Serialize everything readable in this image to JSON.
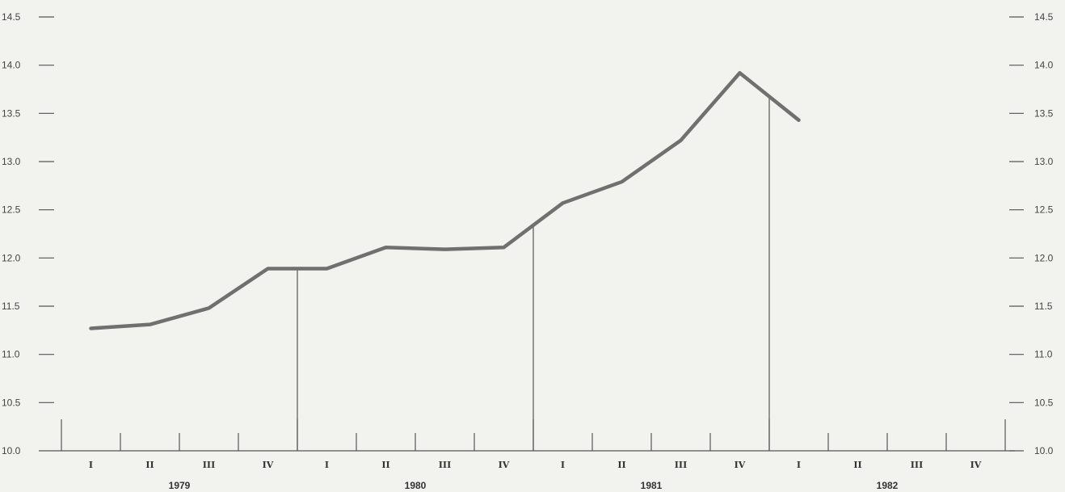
{
  "chart_data": {
    "type": "line",
    "title": "",
    "xlabel": "",
    "ylabel": "",
    "ylim": [
      10.0,
      14.5
    ],
    "y_ticks": [
      "10.0",
      "10.5",
      "11.0",
      "11.5",
      "12.0",
      "12.5",
      "13.0",
      "13.5",
      "14.0",
      "14.5"
    ],
    "quarters": [
      "I",
      "II",
      "III",
      "IV",
      "I",
      "II",
      "III",
      "IV",
      "I",
      "II",
      "III",
      "IV",
      "I",
      "II",
      "III",
      "IV"
    ],
    "years": [
      "1979",
      "1980",
      "1981",
      "1982"
    ],
    "x": [
      "1979 I",
      "1979 II",
      "1979 III",
      "1979 IV",
      "1980 I",
      "1980 II",
      "1980 III",
      "1980 IV",
      "1981 I",
      "1981 II",
      "1981 III",
      "1981 IV",
      "1982 I"
    ],
    "values": [
      11.27,
      11.31,
      11.48,
      11.89,
      11.89,
      12.11,
      12.09,
      12.11,
      12.57,
      12.79,
      13.22,
      13.92,
      13.43
    ],
    "grid": false,
    "right_axis": true,
    "colors": {
      "line": "#707070",
      "axis": "#555555",
      "background": "#f2f2ee"
    }
  }
}
